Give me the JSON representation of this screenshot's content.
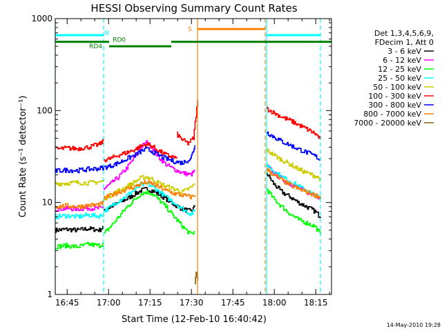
{
  "chart_data": {
    "type": "line",
    "title": "HESSI Observing Summary Count Rates",
    "xlabel": "Start Time (12-Feb-10 16:40:42)",
    "ylabel": "Count Rate (s⁻¹ detector⁻¹)",
    "yscale": "log",
    "ylim": [
      1,
      1000
    ],
    "xlim_minutes": [
      0,
      100
    ],
    "y_ticks": [
      {
        "value": 1,
        "label": "1"
      },
      {
        "value": 10,
        "label": "10"
      },
      {
        "value": 100,
        "label": "100"
      },
      {
        "value": 1000,
        "label": "1000"
      }
    ],
    "x_ticks": [
      {
        "minute": 4.3,
        "label": "16:45"
      },
      {
        "minute": 19.3,
        "label": "17:00"
      },
      {
        "minute": 34.3,
        "label": "17:15"
      },
      {
        "minute": 49.3,
        "label": "17:30"
      },
      {
        "minute": 64.3,
        "label": "17:45"
      },
      {
        "minute": 79.3,
        "label": "18:00"
      },
      {
        "minute": 94.3,
        "label": "18:15"
      }
    ],
    "legend": {
      "placement": "right",
      "header": [
        "Det 1,3,4,5,6,9,",
        "FDecim 1, Att 0"
      ],
      "entries": [
        {
          "label": "3 - 6 keV",
          "color": "#000000"
        },
        {
          "label": "6 - 12 keV",
          "color": "#ff00ff"
        },
        {
          "label": "12 - 25 keV",
          "color": "#00ff00"
        },
        {
          "label": "25 - 50 keV",
          "color": "#00ffff"
        },
        {
          "label": "50 - 100 keV",
          "color": "#cccc00"
        },
        {
          "label": "100 - 300 keV",
          "color": "#ff0000"
        },
        {
          "label": "300 - 800 keV",
          "color": "#0000ff"
        },
        {
          "label": "800 - 7000 keV",
          "color": "#ff8000"
        },
        {
          "label": "7000 - 20000 keV",
          "color": "#806000"
        }
      ]
    },
    "series": [
      {
        "name": "3 - 6 keV",
        "color": "#000000",
        "segments": [
          {
            "x": [
              0,
              4,
              8,
              12,
              16,
              17.5
            ],
            "y": [
              5,
              5.1,
              5,
              5.2,
              5,
              5.5
            ]
          },
          {
            "x": [
              17.5,
              20,
              23,
              26,
              29,
              31,
              33,
              35,
              37,
              40,
              43,
              46,
              49,
              50.5
            ],
            "y": [
              8,
              9,
              10,
              11,
              12.5,
              13.5,
              14,
              13.5,
              12.5,
              11,
              9.5,
              8.5,
              8,
              9
            ]
          },
          {
            "x": [
              76.5,
              79,
              82,
              85,
              88,
              91,
              94,
              96
            ],
            "y": [
              21,
              16,
              13,
              11.5,
              10,
              9,
              8,
              7
            ]
          }
        ]
      },
      {
        "name": "6 - 12 keV",
        "color": "#ff00ff",
        "segments": [
          {
            "x": [
              0,
              4,
              8,
              12,
              16,
              17.5
            ],
            "y": [
              8.5,
              8.6,
              8.5,
              8.7,
              8.6,
              9
            ]
          },
          {
            "x": [
              17.5,
              20,
              23,
              26,
              29,
              31,
              33,
              35,
              37,
              40,
              43,
              46,
              49,
              50.5
            ],
            "y": [
              14,
              16,
              19,
              24,
              32,
              40,
              45,
              40,
              32,
              26,
              23,
              21,
              20,
              22
            ]
          },
          {
            "x": [
              76.5,
              79,
              82,
              85,
              88,
              91,
              94,
              96
            ],
            "y": [
              25,
              21,
              18,
              16,
              14.5,
              13,
              12,
              11
            ]
          }
        ]
      },
      {
        "name": "12 - 25 keV",
        "color": "#00ff00",
        "segments": [
          {
            "x": [
              0,
              4,
              8,
              12,
              16,
              17.5
            ],
            "y": [
              3.3,
              3.4,
              3.3,
              3.5,
              3.4,
              3.6
            ]
          },
          {
            "x": [
              17.5,
              20,
              23,
              26,
              29,
              31,
              33,
              35,
              37,
              40,
              43,
              46,
              49,
              50.5
            ],
            "y": [
              4.5,
              5.5,
              7,
              9,
              11,
              12.5,
              13,
              12.5,
              11,
              9,
              7,
              5.5,
              4.5,
              4.8
            ]
          },
          {
            "x": [
              76.5,
              79,
              82,
              85,
              88,
              91,
              94,
              96
            ],
            "y": [
              14,
              11,
              9,
              7.5,
              6.5,
              6,
              5.5,
              4.5
            ]
          }
        ]
      },
      {
        "name": "25 - 50 keV",
        "color": "#00ffff",
        "segments": [
          {
            "x": [
              0,
              4,
              8,
              12,
              16,
              17.5
            ],
            "y": [
              7,
              7.2,
              7,
              7.3,
              7.1,
              7.5
            ]
          },
          {
            "x": [
              17.5,
              20,
              23,
              26,
              29,
              31,
              33,
              35,
              37,
              40,
              43,
              46,
              49,
              50.5
            ],
            "y": [
              8,
              9,
              10.5,
              12,
              14,
              15.5,
              16,
              15,
              13.5,
              11.5,
              10,
              8.5,
              7.5,
              8
            ]
          },
          {
            "x": [
              76.5,
              79,
              82,
              85,
              88,
              91,
              94,
              96
            ],
            "y": [
              26,
              22,
              19,
              17,
              15,
              13.5,
              12,
              11
            ]
          }
        ]
      },
      {
        "name": "50 - 100 keV",
        "color": "#cccc00",
        "segments": [
          {
            "x": [
              0,
              4,
              8,
              12,
              16,
              17.5
            ],
            "y": [
              16,
              16.2,
              16.5,
              16.3,
              16.8,
              17
            ]
          },
          {
            "x": [
              17.5,
              20,
              23,
              26,
              29,
              31,
              33,
              35,
              37,
              40,
              43,
              46,
              49,
              50.5
            ],
            "y": [
              11,
              12,
              13.5,
              15,
              17,
              18.5,
              19,
              18,
              16.5,
              15,
              14,
              13,
              14.5,
              16
            ]
          },
          {
            "x": [
              76.5,
              79,
              82,
              85,
              88,
              91,
              94,
              96
            ],
            "y": [
              37,
              33,
              29,
              26,
              23,
              21,
              19.5,
              18
            ]
          }
        ]
      },
      {
        "name": "100 - 300 keV",
        "color": "#ff0000",
        "segments": [
          {
            "x": [
              0,
              4,
              8,
              12,
              16,
              17.5
            ],
            "y": [
              38,
              39,
              38.5,
              40,
              43,
              47
            ]
          },
          {
            "x": [
              17.5,
              20,
              23,
              26,
              29,
              31,
              33,
              35,
              37,
              40,
              43,
              44
            ],
            "y": [
              29,
              30,
              33,
              35,
              38,
              41,
              43,
              41,
              37,
              33,
              31,
              30
            ]
          },
          {
            "x": [
              44,
              46,
              48,
              50,
              51.5
            ],
            "y": [
              55,
              48,
              44,
              50,
              130
            ]
          },
          {
            "x": [
              76.5,
              79,
              82,
              85,
              88,
              91,
              94,
              96
            ],
            "y": [
              105,
              95,
              85,
              78,
              70,
              63,
              56,
              49
            ]
          }
        ]
      },
      {
        "name": "300 - 800 keV",
        "color": "#0000ff",
        "segments": [
          {
            "x": [
              0,
              4,
              8,
              12,
              16,
              17.5
            ],
            "y": [
              22,
              22.5,
              22.3,
              23,
              23.5,
              24
            ]
          },
          {
            "x": [
              17.5,
              20,
              23,
              26,
              29,
              31,
              33,
              35,
              37,
              40,
              43,
              46,
              49,
              50.5
            ],
            "y": [
              24,
              25,
              27,
              30,
              33,
              36,
              38,
              36,
              33,
              30,
              28,
              27,
              30,
              42
            ]
          },
          {
            "x": [
              76.5,
              79,
              82,
              85,
              88,
              91,
              94,
              96
            ],
            "y": [
              58,
              52,
              46,
              42,
              38,
              35,
              32,
              29
            ]
          }
        ]
      },
      {
        "name": "800 - 7000 keV",
        "color": "#ff8000",
        "segments": [
          {
            "x": [
              0,
              4,
              8,
              12,
              16,
              17.5
            ],
            "y": [
              9,
              9.2,
              9,
              9.3,
              9.5,
              10
            ]
          },
          {
            "x": [
              17.5,
              20,
              23,
              26,
              29,
              31,
              33,
              35,
              37,
              40,
              43,
              46,
              49,
              50.5
            ],
            "y": [
              11,
              12,
              13,
              14,
              15,
              16,
              16.5,
              16,
              15,
              13.5,
              12.5,
              12,
              11.5,
              12
            ]
          },
          {
            "x": [
              76.5,
              79,
              82,
              85,
              88,
              91,
              94,
              96
            ],
            "y": [
              23,
              20,
              17.5,
              15.5,
              14,
              13,
              12,
              11.5
            ]
          }
        ]
      },
      {
        "name": "7000 - 20000 keV",
        "color": "#806000",
        "segments": [
          {
            "x": [
              50.5,
              51,
              51.5
            ],
            "y": [
              1.3,
              1.8,
              1.4
            ]
          }
        ]
      }
    ],
    "vertical_markers": [
      {
        "minute": 0,
        "color": "#00ffff",
        "style": "solid"
      },
      {
        "minute": 17.5,
        "color": "#00ffff",
        "style": "dashed"
      },
      {
        "minute": 51.5,
        "color": "#ff8000",
        "style": "solid"
      },
      {
        "minute": 76,
        "color": "#ff8000",
        "style": "dashed"
      },
      {
        "minute": 76.5,
        "color": "#00ffff",
        "style": "solid"
      },
      {
        "minute": 96,
        "color": "#00ffff",
        "style": "dashed"
      }
    ],
    "flag_bars": [
      {
        "label": "",
        "color": "#00ffff",
        "y": 660,
        "x": [
          0,
          17.5
        ]
      },
      {
        "label": "",
        "color": "#00ffff",
        "y": 660,
        "x": [
          76.5,
          96
        ]
      },
      {
        "label": "S",
        "color": "#ff8000",
        "y": 770,
        "x": [
          51.5,
          76
        ]
      },
      {
        "label": "",
        "color": "#008000",
        "y": 560,
        "x": [
          0,
          19.5
        ]
      },
      {
        "label": "",
        "color": "#008000",
        "y": 500,
        "x": [
          19.5,
          42
        ]
      },
      {
        "label": "",
        "color": "#008000",
        "y": 560,
        "x": [
          42,
          100
        ]
      }
    ],
    "flag_labels": [
      {
        "text": "N",
        "color": "#00ffff",
        "minute": 17.8,
        "y": 700
      },
      {
        "text": "RD0",
        "color": "#008000",
        "minute": 20.8,
        "y": 590
      },
      {
        "text": "RD4",
        "color": "#008000",
        "minute": 12.3,
        "y": 500
      }
    ]
  },
  "footer": {
    "date_stamp": "14-May-2010 19:28"
  }
}
